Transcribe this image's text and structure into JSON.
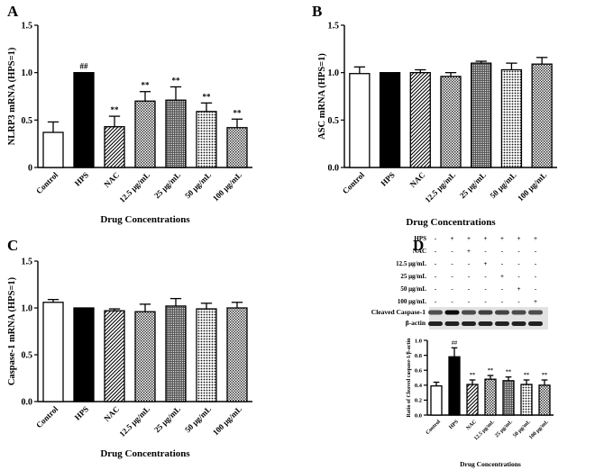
{
  "chart_data": [
    {
      "panel": "A",
      "type": "bar",
      "ylabel": "NLRP3 mRNA (HPS=1)",
      "xlabel": "Drug Concentrations",
      "categories": [
        "Control",
        "HPS",
        "NAC",
        "12.5 μg/mL",
        "25 μg/mL",
        "50 μg/mL",
        "100 μg/mL"
      ],
      "values": [
        0.37,
        1.0,
        0.43,
        0.7,
        0.71,
        0.59,
        0.42
      ],
      "errors": [
        0.11,
        0.0,
        0.11,
        0.1,
        0.14,
        0.09,
        0.09
      ],
      "annotations": [
        "",
        "##",
        "**",
        "**",
        "**",
        "**",
        "**"
      ],
      "ylim": [
        0,
        1.5
      ],
      "yticks": [
        "0",
        "0.5",
        "1.0",
        "1.5"
      ]
    },
    {
      "panel": "B",
      "type": "bar",
      "ylabel": "ASC mRNA (HPS=1)",
      "xlabel": "Drug Concentrations",
      "categories": [
        "Control",
        "HPS",
        "NAC",
        "12.5 μg/mL",
        "25 μg/mL",
        "50 μg/mL",
        "100 μg/mL"
      ],
      "values": [
        0.99,
        1.0,
        1.0,
        0.96,
        1.1,
        1.03,
        1.09
      ],
      "errors": [
        0.07,
        0.0,
        0.03,
        0.04,
        0.02,
        0.07,
        0.07
      ],
      "annotations": [
        "",
        "",
        "",
        "",
        "",
        "",
        ""
      ],
      "ylim": [
        0,
        1.5
      ],
      "yticks": [
        "0.0",
        "0.5",
        "1.0",
        "1.5"
      ]
    },
    {
      "panel": "C",
      "type": "bar",
      "ylabel": "Caspase-1 mRNA (HPS=1)",
      "xlabel": "Drug Concentrations",
      "categories": [
        "Control",
        "HPS",
        "NAC",
        "12.5 μg/mL",
        "25 μg/mL",
        "50 μg/mL",
        "100 μg/mL"
      ],
      "values": [
        1.06,
        1.0,
        0.97,
        0.96,
        1.02,
        0.99,
        1.0
      ],
      "errors": [
        0.03,
        0.0,
        0.02,
        0.08,
        0.08,
        0.06,
        0.06
      ],
      "annotations": [
        "",
        "",
        "",
        "",
        "",
        "",
        ""
      ],
      "ylim": [
        0,
        1.5
      ],
      "yticks": [
        "0.0",
        "0.5",
        "1.0",
        "1.5"
      ]
    },
    {
      "panel": "D",
      "type": "bar",
      "ylabel": "Ratio of Cleaved caspase-1/β-actin",
      "xlabel": "Drug Concentrations",
      "categories": [
        "Control",
        "HPS",
        "NAC",
        "12.5 μg/mL",
        "25 μg/mL",
        "50 μg/mL",
        "100 μg/mL"
      ],
      "values": [
        0.39,
        0.78,
        0.41,
        0.48,
        0.46,
        0.41,
        0.4
      ],
      "errors": [
        0.05,
        0.12,
        0.06,
        0.05,
        0.05,
        0.06,
        0.07
      ],
      "annotations": [
        "",
        "##",
        "**",
        "**",
        "**",
        "**",
        "**"
      ],
      "ylim": [
        0,
        1.0
      ],
      "yticks": [
        "0.0",
        "0.2",
        "0.4",
        "0.6",
        "0.8",
        "1.0"
      ]
    }
  ],
  "panel_labels": [
    "A",
    "B",
    "C",
    "D"
  ],
  "blot": {
    "row_labels": [
      "HPS",
      "NAC",
      "12.5 μg/mL",
      "25 μg/mL",
      "50 μg/mL",
      "100 μg/mL"
    ],
    "signs": [
      [
        "-",
        "+",
        "+",
        "+",
        "+",
        "+",
        "+"
      ],
      [
        "-",
        "-",
        "+",
        "-",
        "-",
        "-",
        "-"
      ],
      [
        "-",
        "-",
        "-",
        "+",
        "-",
        "-",
        "-"
      ],
      [
        "-",
        "-",
        "-",
        "-",
        "+",
        "-",
        "-"
      ],
      [
        "-",
        "-",
        "-",
        "-",
        "-",
        "+",
        "-"
      ],
      [
        "-",
        "-",
        "-",
        "-",
        "-",
        "-",
        "+"
      ]
    ],
    "band_labels": [
      "Cleaved Caspase-1",
      "β-actin"
    ]
  }
}
